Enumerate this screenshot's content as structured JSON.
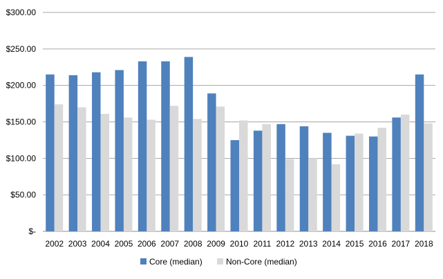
{
  "chart_data": {
    "type": "bar",
    "title": "",
    "xlabel": "",
    "ylabel": "",
    "categories": [
      "2002",
      "2003",
      "2004",
      "2005",
      "2006",
      "2007",
      "2008",
      "2009",
      "2010",
      "2011",
      "2012",
      "2013",
      "2014",
      "2015",
      "2016",
      "2017",
      "2018"
    ],
    "series": [
      {
        "name": "Core (median)",
        "color": "#4f81bd",
        "values": [
          215,
          214,
          218,
          221,
          233,
          233,
          239,
          189,
          125,
          138,
          147,
          144,
          135,
          131,
          130,
          156,
          215
        ]
      },
      {
        "name": "Non-Core (median)",
        "color": "#d9d9d9",
        "values": [
          174,
          170,
          161,
          156,
          153,
          172,
          154,
          171,
          152,
          147,
          99,
          100,
          92,
          134,
          142,
          160,
          148
        ]
      }
    ],
    "ylim": [
      0,
      300
    ],
    "yticks": [
      {
        "value": 0,
        "label": "$-"
      },
      {
        "value": 50,
        "label": "$50.00"
      },
      {
        "value": 100,
        "label": "$100.00"
      },
      {
        "value": 150,
        "label": "$150.00"
      },
      {
        "value": 200,
        "label": "$200.00"
      },
      {
        "value": 250,
        "label": "$250.00"
      },
      {
        "value": 300,
        "label": "$300.00"
      }
    ],
    "grid": true,
    "legend_position": "bottom"
  }
}
